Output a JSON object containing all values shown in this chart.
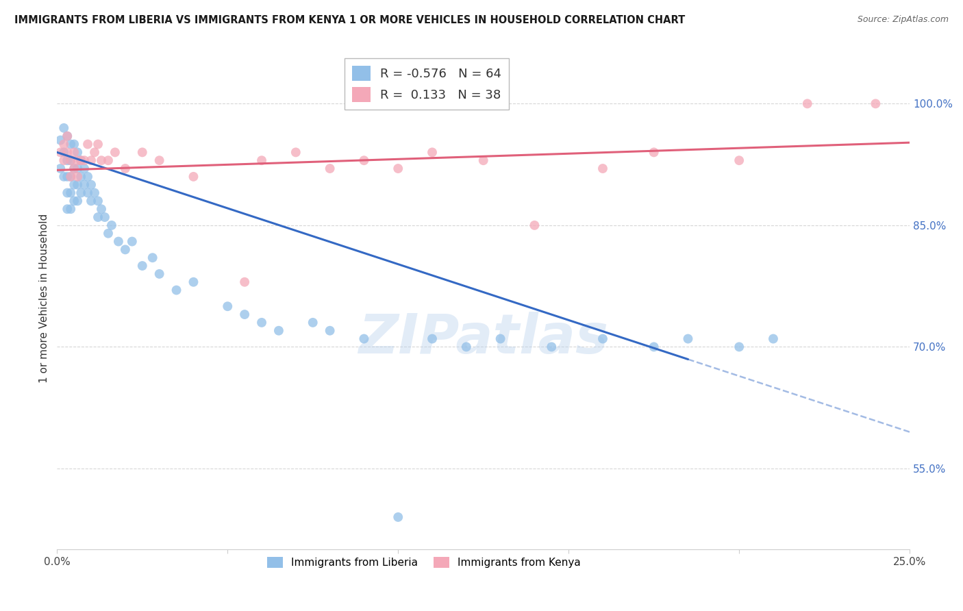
{
  "title": "IMMIGRANTS FROM LIBERIA VS IMMIGRANTS FROM KENYA 1 OR MORE VEHICLES IN HOUSEHOLD CORRELATION CHART",
  "source": "Source: ZipAtlas.com",
  "ylabel": "1 or more Vehicles in Household",
  "xlim": [
    0.0,
    0.25
  ],
  "ylim": [
    0.45,
    1.07
  ],
  "yticks": [
    0.55,
    0.7,
    0.85,
    1.0
  ],
  "ytick_labels": [
    "55.0%",
    "70.0%",
    "85.0%",
    "100.0%"
  ],
  "xticks": [
    0.0,
    0.05,
    0.1,
    0.15,
    0.2,
    0.25
  ],
  "xtick_labels": [
    "0.0%",
    "",
    "",
    "",
    "",
    "25.0%"
  ],
  "liberia_R": -0.576,
  "liberia_N": 64,
  "kenya_R": 0.133,
  "kenya_N": 38,
  "liberia_color": "#92bfe8",
  "kenya_color": "#f4a8b8",
  "liberia_line_color": "#3469c4",
  "kenya_line_color": "#e0607a",
  "watermark": "ZIPatlas",
  "liberia_x": [
    0.001,
    0.001,
    0.002,
    0.002,
    0.002,
    0.003,
    0.003,
    0.003,
    0.003,
    0.003,
    0.004,
    0.004,
    0.004,
    0.004,
    0.004,
    0.005,
    0.005,
    0.005,
    0.005,
    0.006,
    0.006,
    0.006,
    0.006,
    0.007,
    0.007,
    0.007,
    0.008,
    0.008,
    0.009,
    0.009,
    0.01,
    0.01,
    0.011,
    0.012,
    0.012,
    0.013,
    0.014,
    0.015,
    0.016,
    0.018,
    0.02,
    0.022,
    0.025,
    0.028,
    0.03,
    0.035,
    0.04,
    0.05,
    0.055,
    0.06,
    0.065,
    0.075,
    0.08,
    0.09,
    0.1,
    0.11,
    0.12,
    0.13,
    0.145,
    0.16,
    0.175,
    0.185,
    0.2,
    0.21
  ],
  "liberia_y": [
    0.955,
    0.92,
    0.97,
    0.94,
    0.91,
    0.96,
    0.93,
    0.91,
    0.89,
    0.87,
    0.95,
    0.93,
    0.91,
    0.89,
    0.87,
    0.95,
    0.92,
    0.9,
    0.88,
    0.94,
    0.92,
    0.9,
    0.88,
    0.93,
    0.91,
    0.89,
    0.92,
    0.9,
    0.91,
    0.89,
    0.9,
    0.88,
    0.89,
    0.88,
    0.86,
    0.87,
    0.86,
    0.84,
    0.85,
    0.83,
    0.82,
    0.83,
    0.8,
    0.81,
    0.79,
    0.77,
    0.78,
    0.75,
    0.74,
    0.73,
    0.72,
    0.73,
    0.72,
    0.71,
    0.49,
    0.71,
    0.7,
    0.71,
    0.7,
    0.71,
    0.7,
    0.71,
    0.7,
    0.71
  ],
  "kenya_x": [
    0.001,
    0.002,
    0.002,
    0.003,
    0.003,
    0.004,
    0.004,
    0.005,
    0.005,
    0.006,
    0.006,
    0.007,
    0.008,
    0.009,
    0.01,
    0.011,
    0.012,
    0.013,
    0.015,
    0.017,
    0.02,
    0.025,
    0.03,
    0.04,
    0.055,
    0.06,
    0.07,
    0.08,
    0.09,
    0.1,
    0.11,
    0.125,
    0.14,
    0.16,
    0.175,
    0.2,
    0.22,
    0.24
  ],
  "kenya_y": [
    0.94,
    0.95,
    0.93,
    0.96,
    0.94,
    0.93,
    0.91,
    0.94,
    0.92,
    0.93,
    0.91,
    0.93,
    0.93,
    0.95,
    0.93,
    0.94,
    0.95,
    0.93,
    0.93,
    0.94,
    0.92,
    0.94,
    0.93,
    0.91,
    0.78,
    0.93,
    0.94,
    0.92,
    0.93,
    0.92,
    0.94,
    0.93,
    0.85,
    0.92,
    0.94,
    0.93,
    1.0,
    1.0
  ],
  "liberia_line_x0": 0.0,
  "liberia_line_solid_x1": 0.185,
  "liberia_line_x1": 0.25,
  "liberia_line_y0": 0.94,
  "liberia_line_y1": 0.595,
  "kenya_line_x0": 0.0,
  "kenya_line_x1": 0.25,
  "kenya_line_y0": 0.918,
  "kenya_line_y1": 0.952,
  "background_color": "#ffffff",
  "grid_color": "#cccccc"
}
